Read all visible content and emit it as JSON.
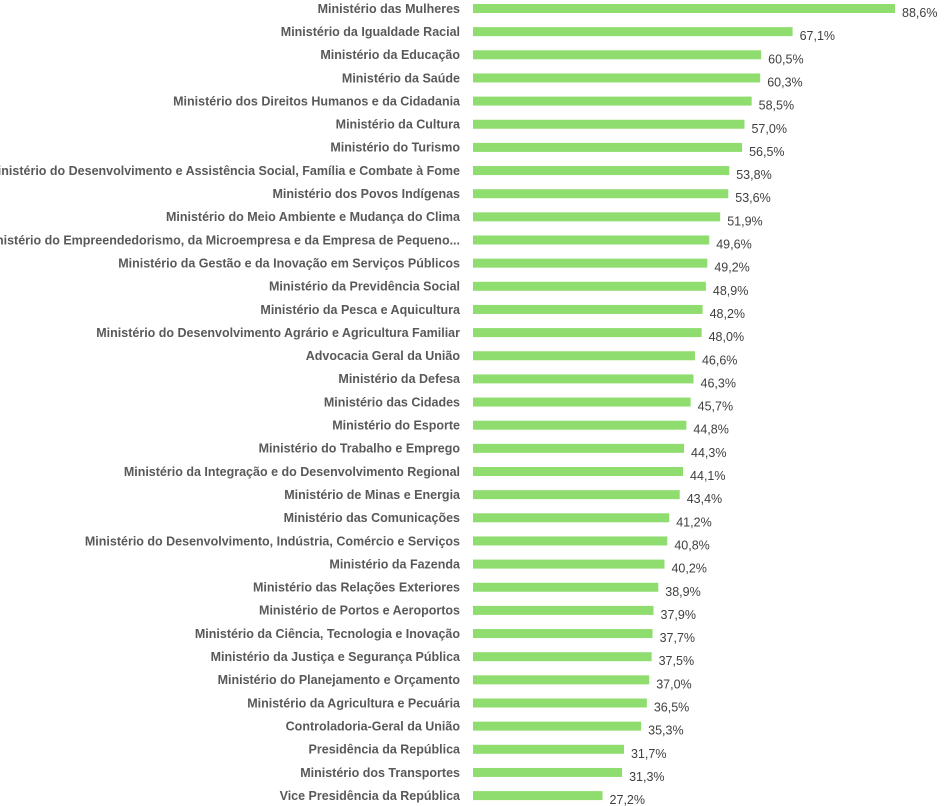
{
  "chart_data": {
    "type": "bar",
    "orientation": "horizontal",
    "bar_color": "#8fdc6f",
    "categories": [
      "Ministério das Mulheres",
      "Ministério da Igualdade Racial",
      "Ministério da Educação",
      "Ministério da Saúde",
      "Ministério dos Direitos Humanos e da Cidadania",
      "Ministério da Cultura",
      "Ministério do Turismo",
      "Ministério do Desenvolvimento e Assistência Social, Família e Combate à Fome",
      "Ministério dos Povos Indígenas",
      "Ministério do Meio Ambiente e Mudança do Clima",
      "Ministério do Empreendedorismo, da Microempresa e da Empresa de Pequeno...",
      "Ministério da Gestão e da Inovação em Serviços Públicos",
      "Ministério da Previdência Social",
      "Ministério da Pesca e Aquicultura",
      "Ministério do Desenvolvimento Agrário e Agricultura Familiar",
      "Advocacia Geral da União",
      "Ministério da Defesa",
      "Ministério das Cidades",
      "Ministério do Esporte",
      "Ministério do Trabalho e Emprego",
      "Ministério da Integração e do Desenvolvimento Regional",
      "Ministério de Minas e Energia",
      "Ministério das Comunicações",
      "Ministério do Desenvolvimento, Indústria, Comércio e Serviços",
      "Ministério da Fazenda",
      "Ministério das Relações Exteriores",
      "Ministério de Portos e Aeroportos",
      "Ministério da Ciência, Tecnologia e Inovação",
      "Ministério da Justiça e Segurança Pública",
      "Ministério do Planejamento e Orçamento",
      "Ministério da Agricultura e Pecuária",
      "Controladoria-Geral da União",
      "Presidência da República",
      "Ministério dos Transportes",
      "Vice Presidência da República"
    ],
    "values": [
      88.6,
      67.1,
      60.5,
      60.3,
      58.5,
      57.0,
      56.5,
      53.8,
      53.6,
      51.9,
      49.6,
      49.2,
      48.9,
      48.2,
      48.0,
      46.6,
      46.3,
      45.7,
      44.8,
      44.3,
      44.1,
      43.4,
      41.2,
      40.8,
      40.2,
      38.9,
      37.9,
      37.7,
      37.5,
      37.0,
      36.5,
      35.3,
      31.7,
      31.3,
      27.2
    ],
    "value_labels": [
      "88,6%",
      "67,1%",
      "60,5%",
      "60,3%",
      "58,5%",
      "57,0%",
      "56,5%",
      "53,8%",
      "53,6%",
      "51,9%",
      "49,6%",
      "49,2%",
      "48,9%",
      "48,2%",
      "48,0%",
      "46,6%",
      "46,3%",
      "45,7%",
      "44,8%",
      "44,3%",
      "44,1%",
      "43,4%",
      "41,2%",
      "40,8%",
      "40,2%",
      "38,9%",
      "37,9%",
      "37,7%",
      "37,5%",
      "37,0%",
      "36,5%",
      "35,3%",
      "31,7%",
      "31,3%",
      "27,2%"
    ],
    "xlim": [
      0,
      100
    ],
    "grid": false,
    "legend": false,
    "title": "",
    "xlabel": "",
    "ylabel": ""
  }
}
